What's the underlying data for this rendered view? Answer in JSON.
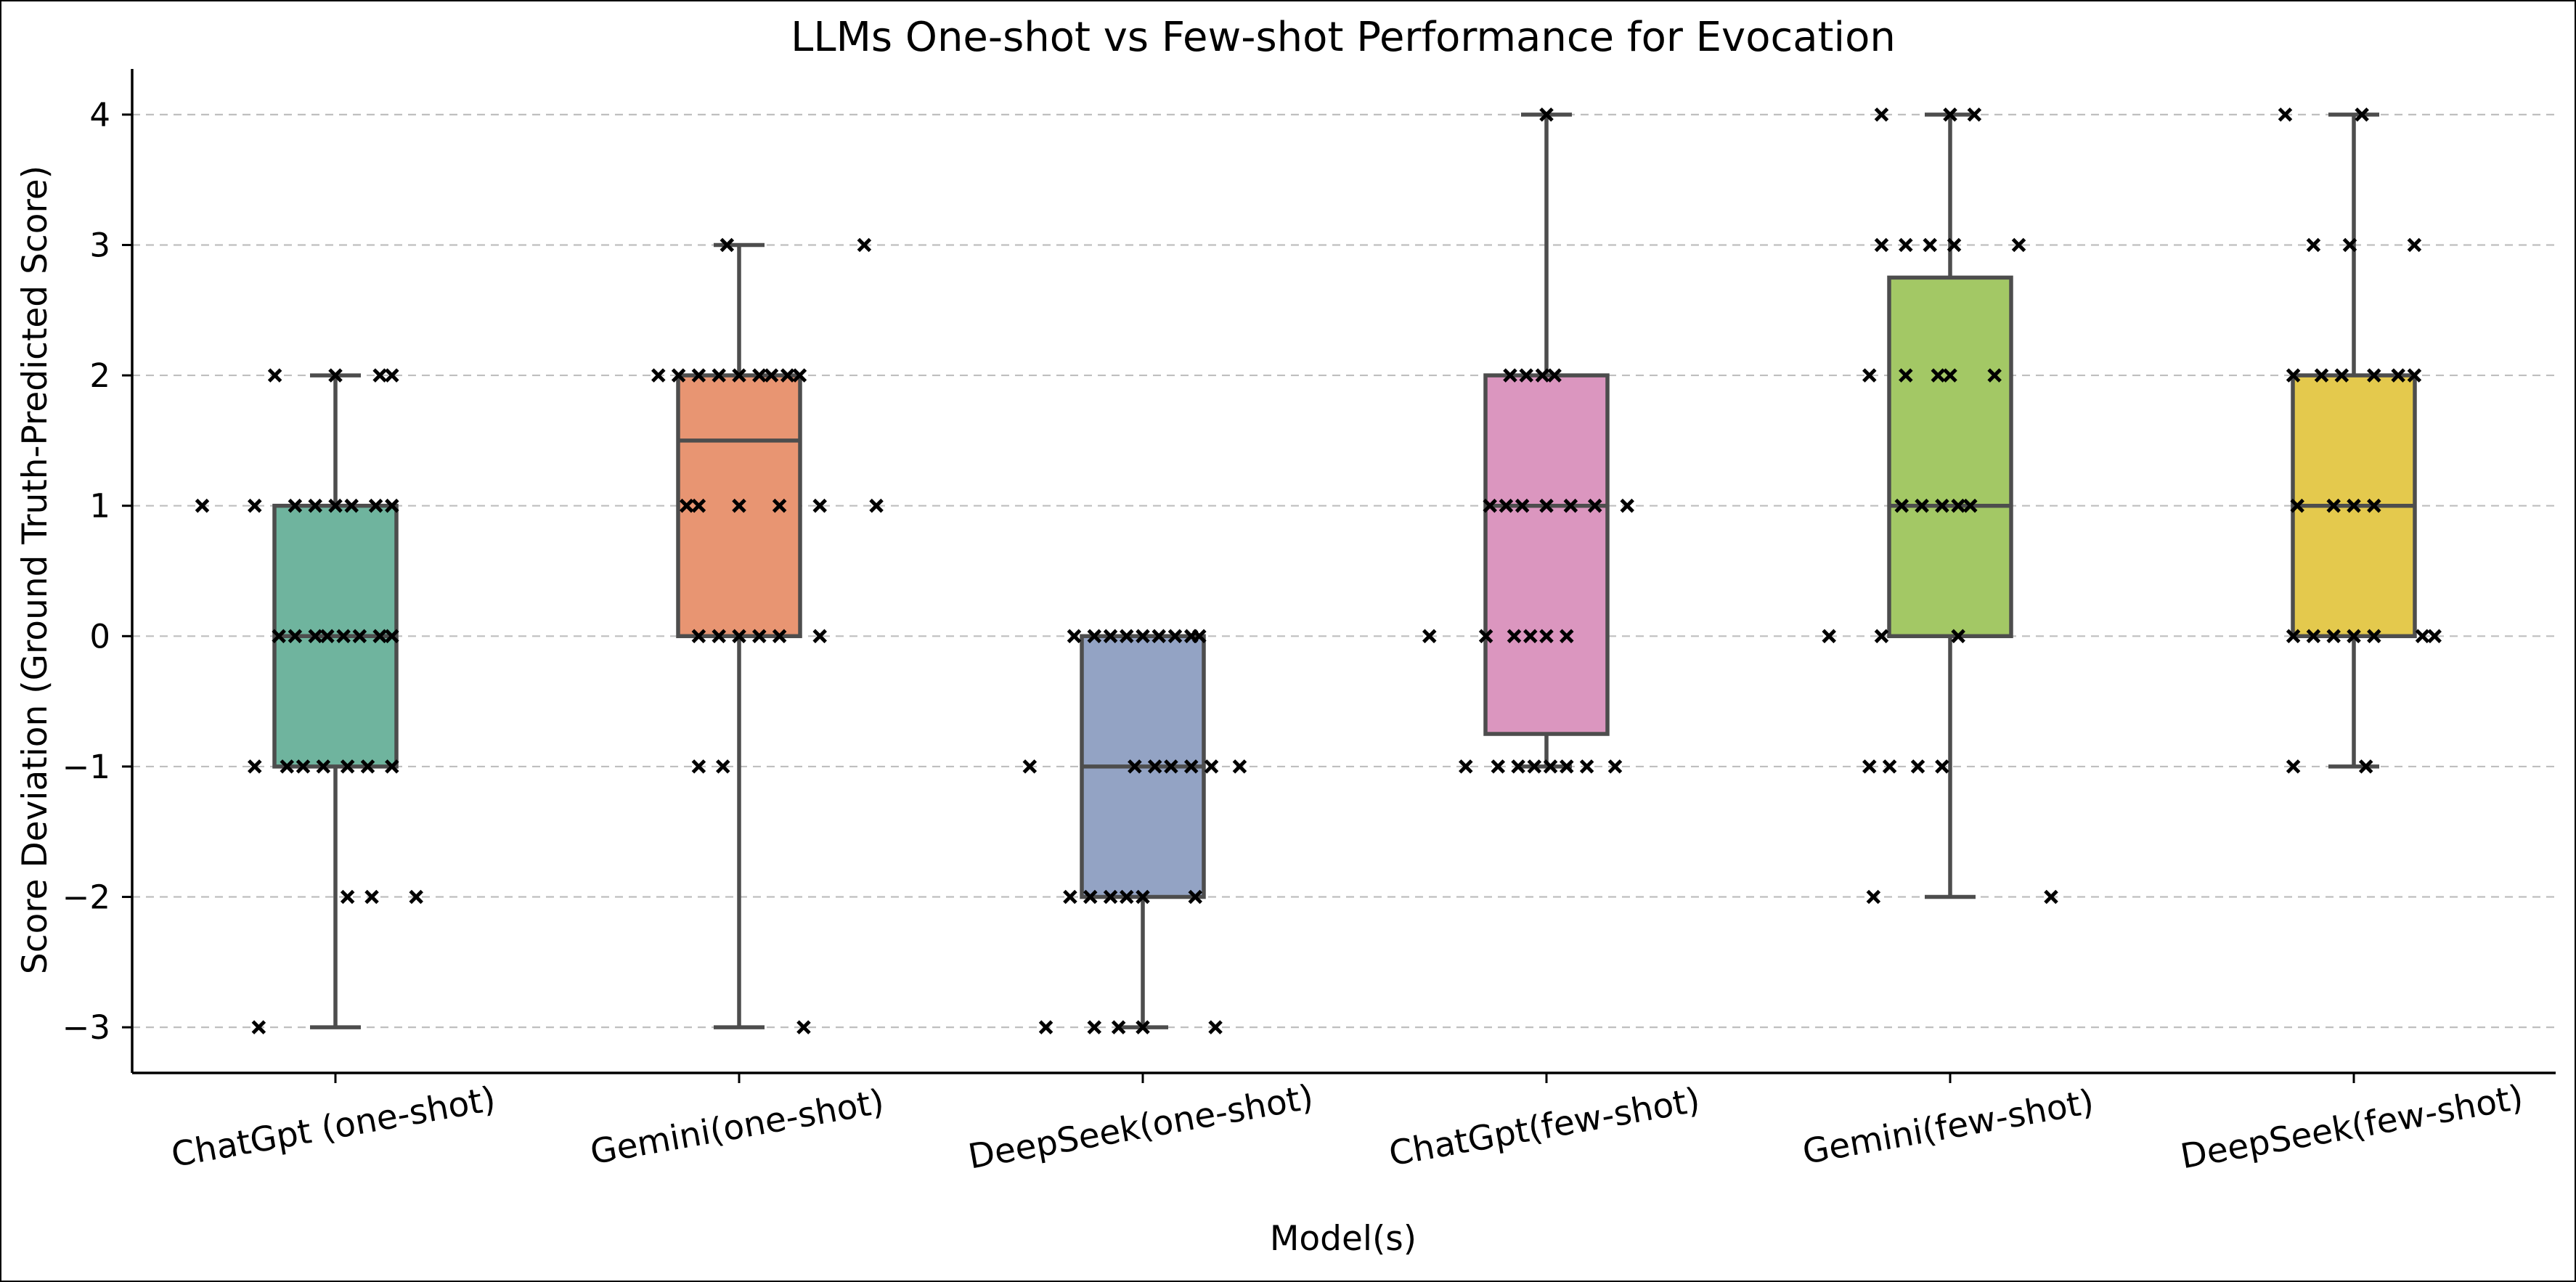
{
  "chart_data": {
    "type": "box",
    "title": "LLMs One-shot vs Few-shot Performance for Evocation",
    "xlabel": "Model(s)",
    "ylabel": "Score Deviation (Ground Truth-Predicted Score)",
    "ylim": [
      -3.35,
      4.35
    ],
    "yticks": [
      4,
      3,
      2,
      1,
      0,
      -1,
      -2,
      -3
    ],
    "ytick_labels": [
      "4",
      "3",
      "2",
      "1",
      "0",
      "−1",
      "−2",
      "−3"
    ],
    "grid": "horizontal-dashed",
    "categories": [
      "ChatGpt (one-shot)",
      "Gemini(one-shot)",
      "DeepSeek(one-shot)",
      "ChatGpt(few-shot)",
      "Gemini(few-shot)",
      "DeepSeek(few-shot)"
    ],
    "colors": [
      "#6fb49e",
      "#e89572",
      "#93a3c4",
      "#db96bf",
      "#a3c865",
      "#e4c94d"
    ],
    "series": [
      {
        "name": "ChatGpt (one-shot)",
        "box": {
          "q1": -1,
          "median": 0,
          "q3": 1,
          "whisker_low": -3,
          "whisker_high": 2
        },
        "points": [
          {
            "y": 2,
            "offsets": [
              -0.15,
              0.0,
              0.11,
              0.14
            ]
          },
          {
            "y": 1,
            "offsets": [
              -0.33,
              -0.2,
              -0.1,
              -0.05,
              0.0,
              0.04,
              0.1,
              0.14
            ]
          },
          {
            "y": 0,
            "offsets": [
              -0.14,
              -0.1,
              -0.05,
              -0.02,
              0.02,
              0.06,
              0.11,
              0.14
            ]
          },
          {
            "y": -1,
            "offsets": [
              -0.2,
              -0.12,
              -0.08,
              -0.03,
              0.03,
              0.08,
              0.14
            ]
          },
          {
            "y": -2,
            "offsets": [
              0.03,
              0.09,
              0.2
            ]
          },
          {
            "y": -3,
            "offsets": [
              -0.19
            ]
          }
        ]
      },
      {
        "name": "Gemini(one-shot)",
        "box": {
          "q1": 0,
          "median": 1.5,
          "q3": 2,
          "whisker_low": -3,
          "whisker_high": 3
        },
        "points": [
          {
            "y": 3,
            "offsets": [
              -0.03,
              0.31
            ]
          },
          {
            "y": 2,
            "offsets": [
              -0.2,
              -0.15,
              -0.1,
              -0.05,
              0.0,
              0.05,
              0.08,
              0.12,
              0.15
            ]
          },
          {
            "y": 1,
            "offsets": [
              -0.13,
              -0.1,
              0.0,
              0.1,
              0.2,
              0.34
            ]
          },
          {
            "y": 0,
            "offsets": [
              -0.1,
              -0.05,
              0.0,
              0.05,
              0.1,
              0.2
            ]
          },
          {
            "y": -1,
            "offsets": [
              -0.1,
              -0.04
            ]
          },
          {
            "y": -3,
            "offsets": [
              0.16
            ]
          }
        ]
      },
      {
        "name": "DeepSeek(one-shot)",
        "box": {
          "q1": -2,
          "median": -1,
          "q3": 0,
          "whisker_low": -3,
          "whisker_high": 0
        },
        "points": [
          {
            "y": 0,
            "offsets": [
              -0.17,
              -0.12,
              -0.08,
              -0.04,
              0.0,
              0.04,
              0.08,
              0.12,
              0.14
            ]
          },
          {
            "y": -1,
            "offsets": [
              -0.28,
              -0.02,
              0.03,
              0.07,
              0.12,
              0.17,
              0.24
            ]
          },
          {
            "y": -2,
            "offsets": [
              -0.18,
              -0.13,
              -0.08,
              -0.04,
              0.0,
              0.13
            ]
          },
          {
            "y": -3,
            "offsets": [
              -0.24,
              -0.12,
              -0.06,
              0.0,
              0.18
            ]
          }
        ]
      },
      {
        "name": "ChatGpt(few-shot)",
        "box": {
          "q1": -0.75,
          "median": 1,
          "q3": 2,
          "whisker_low": -1,
          "whisker_high": 4
        },
        "points": [
          {
            "y": 4,
            "offsets": [
              0.0
            ]
          },
          {
            "y": 2,
            "offsets": [
              -0.09,
              -0.05,
              -0.01,
              0.02
            ]
          },
          {
            "y": 1,
            "offsets": [
              -0.14,
              -0.1,
              -0.06,
              0.0,
              0.06,
              0.12,
              0.2
            ]
          },
          {
            "y": 0,
            "offsets": [
              -0.29,
              -0.15,
              -0.08,
              -0.04,
              0.0,
              0.05
            ]
          },
          {
            "y": -1,
            "offsets": [
              -0.2,
              -0.12,
              -0.07,
              -0.03,
              0.01,
              0.05,
              0.1,
              0.17
            ]
          }
        ]
      },
      {
        "name": "Gemini(few-shot)",
        "box": {
          "q1": 0,
          "median": 1,
          "q3": 2.75,
          "whisker_low": -2,
          "whisker_high": 4
        },
        "points": [
          {
            "y": 4,
            "offsets": [
              -0.17,
              0.0,
              0.06
            ]
          },
          {
            "y": 3,
            "offsets": [
              -0.17,
              -0.11,
              -0.05,
              0.01,
              0.17
            ]
          },
          {
            "y": 2,
            "offsets": [
              -0.2,
              -0.11,
              -0.03,
              0.0,
              0.11
            ]
          },
          {
            "y": 1,
            "offsets": [
              -0.12,
              -0.07,
              -0.02,
              0.02,
              0.05
            ]
          },
          {
            "y": 0,
            "offsets": [
              -0.3,
              -0.17,
              0.02
            ]
          },
          {
            "y": -1,
            "offsets": [
              -0.2,
              -0.15,
              -0.08,
              -0.02
            ]
          },
          {
            "y": -2,
            "offsets": [
              -0.19,
              0.25
            ]
          }
        ]
      },
      {
        "name": "DeepSeek(few-shot)",
        "box": {
          "q1": 0,
          "median": 1,
          "q3": 2,
          "whisker_low": -1,
          "whisker_high": 4
        },
        "points": [
          {
            "y": 4,
            "offsets": [
              -0.17,
              0.02
            ]
          },
          {
            "y": 3,
            "offsets": [
              -0.1,
              -0.01,
              0.15
            ]
          },
          {
            "y": 2,
            "offsets": [
              -0.15,
              -0.08,
              -0.03,
              0.05,
              0.11,
              0.15
            ]
          },
          {
            "y": 1,
            "offsets": [
              -0.14,
              -0.05,
              0.0,
              0.05
            ]
          },
          {
            "y": 0,
            "offsets": [
              -0.15,
              -0.1,
              -0.05,
              0.0,
              0.05,
              0.17,
              0.2
            ]
          },
          {
            "y": -1,
            "offsets": [
              -0.15,
              0.03
            ]
          }
        ]
      }
    ]
  }
}
